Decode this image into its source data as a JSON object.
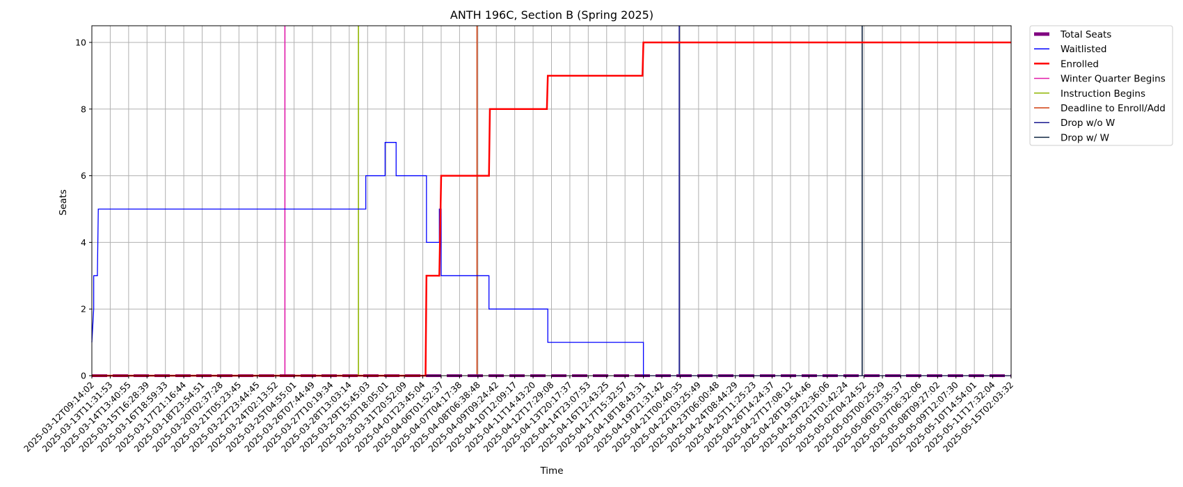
{
  "chart_data": {
    "type": "line",
    "title": "ANTH 196C, Section B (Spring 2025)",
    "xlabel": "Time",
    "ylabel": "Seats",
    "ylim": [
      0,
      10.5
    ],
    "yticks": [
      0,
      2,
      4,
      6,
      8,
      10
    ],
    "xlim": [
      "2025-03-12T09:14:02",
      "2025-05-15T02:03:32"
    ],
    "grid": true,
    "legend_position": "outside-top-right",
    "x_tick_labels": [
      "2025-03-12T09:14:02",
      "2025-03-13T11:31:53",
      "2025-03-14T13:40:55",
      "2025-03-15T16:28:39",
      "2025-03-16T18:59:33",
      "2025-03-17T21:16:44",
      "2025-03-18T23:54:51",
      "2025-03-20T02:37:28",
      "2025-03-21T05:23:45",
      "2025-03-22T23:44:45",
      "2025-03-24T02:13:52",
      "2025-03-25T04:55:01",
      "2025-03-26T07:44:49",
      "2025-03-27T10:19:34",
      "2025-03-28T13:03:14",
      "2025-03-29T15:45:03",
      "2025-03-30T18:05:01",
      "2025-03-31T20:52:09",
      "2025-04-01T23:45:04",
      "2025-04-06T01:52:37",
      "2025-04-07T04:17:38",
      "2025-04-08T06:38:48",
      "2025-04-09T09:24:42",
      "2025-04-10T12:09:17",
      "2025-04-11T14:43:20",
      "2025-04-12T17:29:08",
      "2025-04-13T20:17:37",
      "2025-04-14T23:07:53",
      "2025-04-16T12:43:25",
      "2025-04-17T15:32:57",
      "2025-04-18T18:43:31",
      "2025-04-19T21:31:42",
      "2025-04-21T00:40:35",
      "2025-04-22T03:25:49",
      "2025-04-23T06:00:48",
      "2025-04-24T08:44:29",
      "2025-04-25T11:25:23",
      "2025-04-26T14:24:37",
      "2025-04-27T17:08:12",
      "2025-04-28T19:54:46",
      "2025-04-29T22:36:06",
      "2025-05-01T01:42:24",
      "2025-05-02T04:24:52",
      "2025-05-05T00:25:29",
      "2025-05-06T03:35:37",
      "2025-05-07T06:32:06",
      "2025-05-08T09:27:02",
      "2025-05-09T12:07:30",
      "2025-05-10T14:54:01",
      "2025-05-11T17:32:04",
      "2025-05-15T02:03:32"
    ],
    "series": [
      {
        "name": "Total Seats",
        "color": "#800080",
        "style": "dashed",
        "points": [
          [
            0,
            0
          ],
          [
            50,
            0
          ]
        ]
      },
      {
        "name": "Waitlisted",
        "color": "#0000ff",
        "style": "step",
        "points": [
          [
            0,
            1
          ],
          [
            0.1,
            2
          ],
          [
            0.1,
            3
          ],
          [
            0.3,
            3
          ],
          [
            0.35,
            5
          ],
          [
            14.9,
            5
          ],
          [
            14.9,
            6
          ],
          [
            15.95,
            6
          ],
          [
            15.95,
            7
          ],
          [
            16.55,
            7
          ],
          [
            16.55,
            6
          ],
          [
            18.2,
            6
          ],
          [
            18.2,
            4
          ],
          [
            18.9,
            4
          ],
          [
            18.9,
            5
          ],
          [
            19.0,
            5
          ],
          [
            19.0,
            3
          ],
          [
            21.6,
            3
          ],
          [
            21.6,
            2
          ],
          [
            24.8,
            2
          ],
          [
            24.8,
            1
          ],
          [
            30.0,
            1
          ],
          [
            30.0,
            0
          ],
          [
            50,
            0
          ]
        ]
      },
      {
        "name": "Enrolled",
        "color": "#ff0000",
        "style": "step",
        "points": [
          [
            0,
            0
          ],
          [
            18.15,
            0
          ],
          [
            18.2,
            3
          ],
          [
            18.9,
            3
          ],
          [
            19.0,
            6
          ],
          [
            21.6,
            6
          ],
          [
            21.65,
            8
          ],
          [
            24.75,
            8
          ],
          [
            24.8,
            9
          ],
          [
            29.95,
            9
          ],
          [
            30.0,
            10
          ],
          [
            50,
            10
          ]
        ]
      }
    ],
    "markers": [
      {
        "name": "Winter Quarter Begins",
        "color": "#e11aa9",
        "x_index": 10.5
      },
      {
        "name": "Instruction Begins",
        "color": "#8fb500",
        "x_index": 14.5
      },
      {
        "name": "Deadline to Enroll/Add",
        "color": "#d13b0b",
        "x_index": 20.95
      },
      {
        "name": "Drop w/o W",
        "color": "#17178f",
        "x_index": 31.95
      },
      {
        "name": "Drop w/ W",
        "color": "#0f2440",
        "x_index": 41.9
      }
    ]
  }
}
